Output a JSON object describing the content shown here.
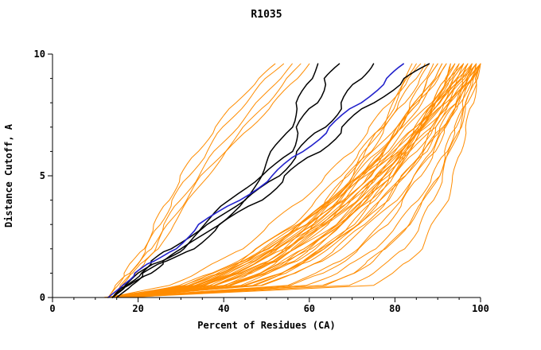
{
  "page": {
    "title": "R1035"
  },
  "chart_data": {
    "type": "line",
    "title": "R1035",
    "xlabel": "Percent of Residues (CA)",
    "ylabel": "Distance Cutoff, A",
    "xlim": [
      0,
      100
    ],
    "ylim": [
      0,
      10
    ],
    "x_major_ticks": [
      0,
      20,
      40,
      60,
      80,
      100
    ],
    "x_minor_step": 5,
    "y_major_ticks": [
      0,
      5,
      10
    ],
    "y_minor_step": 1,
    "grid": false,
    "legend": "none",
    "colors": {
      "orange": "#ff8c00",
      "black": "#000000",
      "blue": "#2222cc"
    },
    "y_grid": [
      0,
      0.5,
      1,
      1.5,
      2,
      3,
      4,
      5,
      6,
      7,
      8,
      9,
      9.6
    ],
    "series": {
      "orange_steep": [
        [
          13,
          15,
          17,
          19,
          21,
          24,
          27,
          30,
          34,
          38,
          43,
          48,
          52
        ],
        [
          13,
          15,
          18,
          20,
          22,
          25,
          28,
          32,
          36,
          40,
          45,
          50,
          54
        ],
        [
          14,
          16,
          18,
          21,
          23,
          26,
          30,
          34,
          38,
          43,
          48,
          53,
          56
        ],
        [
          14,
          16,
          19,
          21,
          24,
          27,
          31,
          35,
          40,
          45,
          50,
          55,
          58
        ],
        [
          14,
          17,
          19,
          22,
          25,
          28,
          32,
          36,
          41,
          46,
          52,
          57,
          60
        ]
      ],
      "orange": [
        [
          13,
          49,
          57,
          63,
          67,
          74,
          80,
          85,
          89,
          92,
          95,
          98,
          100
        ],
        [
          14,
          45,
          53,
          59,
          64,
          71,
          77,
          82,
          87,
          91,
          95,
          98,
          100
        ],
        [
          15,
          41,
          49,
          55,
          60,
          68,
          74,
          80,
          85,
          89,
          93,
          97,
          99
        ],
        [
          13,
          35,
          44,
          50,
          55,
          63,
          70,
          76,
          82,
          87,
          91,
          96,
          98
        ],
        [
          14,
          33,
          41,
          47,
          52,
          60,
          68,
          74,
          80,
          85,
          90,
          94,
          97
        ],
        [
          15,
          31,
          38,
          44,
          49,
          58,
          65,
          72,
          78,
          83,
          88,
          93,
          96
        ],
        [
          16,
          38,
          46,
          52,
          57,
          66,
          73,
          79,
          84,
          89,
          93,
          98,
          100
        ],
        [
          12,
          38,
          46,
          52,
          56,
          64,
          71,
          76,
          81,
          85,
          89,
          93,
          95
        ],
        [
          13,
          42,
          50,
          55,
          60,
          67,
          73,
          78,
          82,
          86,
          89,
          92,
          94
        ],
        [
          14,
          47,
          54,
          59,
          63,
          70,
          75,
          79,
          83,
          86,
          89,
          92,
          93
        ],
        [
          15,
          35,
          43,
          48,
          53,
          61,
          67,
          72,
          77,
          82,
          86,
          90,
          92
        ],
        [
          16,
          33,
          40,
          46,
          50,
          58,
          65,
          70,
          75,
          80,
          85,
          89,
          91
        ],
        [
          13,
          37,
          44,
          50,
          54,
          61,
          67,
          72,
          77,
          81,
          85,
          88,
          90
        ],
        [
          14,
          41,
          48,
          53,
          57,
          64,
          69,
          74,
          78,
          81,
          84,
          87,
          89
        ],
        [
          15,
          34,
          41,
          47,
          51,
          58,
          64,
          69,
          74,
          78,
          82,
          86,
          88
        ],
        [
          16,
          32,
          39,
          44,
          48,
          56,
          62,
          67,
          72,
          77,
          81,
          85,
          87
        ],
        [
          13,
          27,
          34,
          39,
          44,
          51,
          58,
          64,
          70,
          74,
          79,
          83,
          86
        ],
        [
          14,
          36,
          43,
          48,
          52,
          59,
          64,
          69,
          73,
          77,
          80,
          83,
          85
        ],
        [
          15,
          40,
          46,
          51,
          55,
          61,
          66,
          70,
          73,
          77,
          80,
          82,
          84
        ],
        [
          16,
          42,
          50,
          56,
          60,
          67,
          73,
          78,
          83,
          87,
          91,
          94,
          96
        ],
        [
          17,
          40,
          48,
          54,
          59,
          67,
          73,
          79,
          83,
          88,
          92,
          96,
          98
        ],
        [
          12,
          45,
          54,
          60,
          64,
          72,
          78,
          82,
          87,
          90,
          94,
          97,
          99
        ],
        [
          14,
          34,
          42,
          48,
          53,
          62,
          70,
          76,
          82,
          87,
          93,
          97,
          100
        ],
        [
          15,
          32,
          40,
          46,
          51,
          60,
          68,
          74,
          81,
          86,
          92,
          97,
          100
        ],
        [
          16,
          30,
          37,
          43,
          48,
          57,
          65,
          72,
          79,
          85,
          90,
          96,
          99
        ],
        [
          13,
          35,
          43,
          49,
          54,
          63,
          70,
          76,
          81,
          86,
          90,
          95,
          97
        ],
        [
          14,
          38,
          46,
          52,
          56,
          64,
          71,
          76,
          81,
          86,
          90,
          94,
          96
        ],
        [
          15,
          41,
          49,
          55,
          59,
          66,
          72,
          77,
          82,
          86,
          90,
          93,
          95
        ],
        [
          16,
          44,
          51,
          57,
          61,
          68,
          73,
          78,
          82,
          86,
          89,
          92,
          94
        ],
        [
          17,
          47,
          54,
          59,
          63,
          70,
          75,
          79,
          83,
          86,
          89,
          92,
          93
        ],
        [
          12,
          32,
          39,
          45,
          50,
          58,
          65,
          71,
          76,
          81,
          85,
          90,
          92
        ],
        [
          13,
          31,
          39,
          45,
          50,
          59,
          67,
          73,
          80,
          85,
          90,
          95,
          98
        ],
        [
          14,
          35,
          42,
          48,
          52,
          60,
          66,
          72,
          77,
          81,
          85,
          89,
          91
        ],
        [
          15,
          38,
          45,
          51,
          55,
          62,
          68,
          73,
          77,
          81,
          85,
          88,
          90
        ],
        [
          16,
          45,
          53,
          59,
          63,
          71,
          77,
          82,
          87,
          91,
          95,
          98,
          100
        ],
        [
          16,
          75,
          80,
          83,
          86,
          89,
          92,
          94,
          95,
          97,
          98,
          99,
          100
        ],
        [
          14,
          64,
          70,
          75,
          78,
          83,
          87,
          90,
          92,
          94,
          96,
          98,
          99
        ],
        [
          15,
          59,
          67,
          71,
          75,
          81,
          85,
          89,
          92,
          94,
          97,
          99,
          100
        ],
        [
          17,
          56,
          63,
          68,
          72,
          78,
          82,
          86,
          89,
          92,
          94,
          97,
          98
        ],
        [
          16,
          69,
          75,
          79,
          82,
          86,
          89,
          91,
          93,
          95,
          97,
          98,
          99
        ],
        [
          13,
          49,
          57,
          62,
          66,
          73,
          78,
          82,
          86,
          89,
          92,
          95,
          96
        ],
        [
          18,
          63,
          70,
          74,
          78,
          83,
          87,
          90,
          93,
          95,
          97,
          99,
          100
        ],
        [
          15,
          55,
          62,
          67,
          71,
          77,
          81,
          85,
          88,
          91,
          94,
          96,
          97
        ]
      ],
      "black": [
        [
          14,
          17,
          20,
          24,
          28,
          35,
          42,
          48,
          52,
          55,
          58,
          60,
          62
        ],
        [
          14,
          17,
          21,
          25,
          30,
          37,
          44,
          50,
          55,
          58,
          61,
          64,
          67
        ],
        [
          14,
          18,
          22,
          26,
          31,
          38,
          46,
          52,
          58,
          63,
          68,
          72,
          75
        ],
        [
          15,
          18,
          22,
          27,
          32,
          40,
          48,
          55,
          62,
          68,
          75,
          82,
          88
        ]
      ],
      "blue": [
        [
          13,
          16,
          20,
          24,
          28,
          35,
          43,
          52,
          58,
          65,
          72,
          78,
          82
        ]
      ]
    }
  }
}
